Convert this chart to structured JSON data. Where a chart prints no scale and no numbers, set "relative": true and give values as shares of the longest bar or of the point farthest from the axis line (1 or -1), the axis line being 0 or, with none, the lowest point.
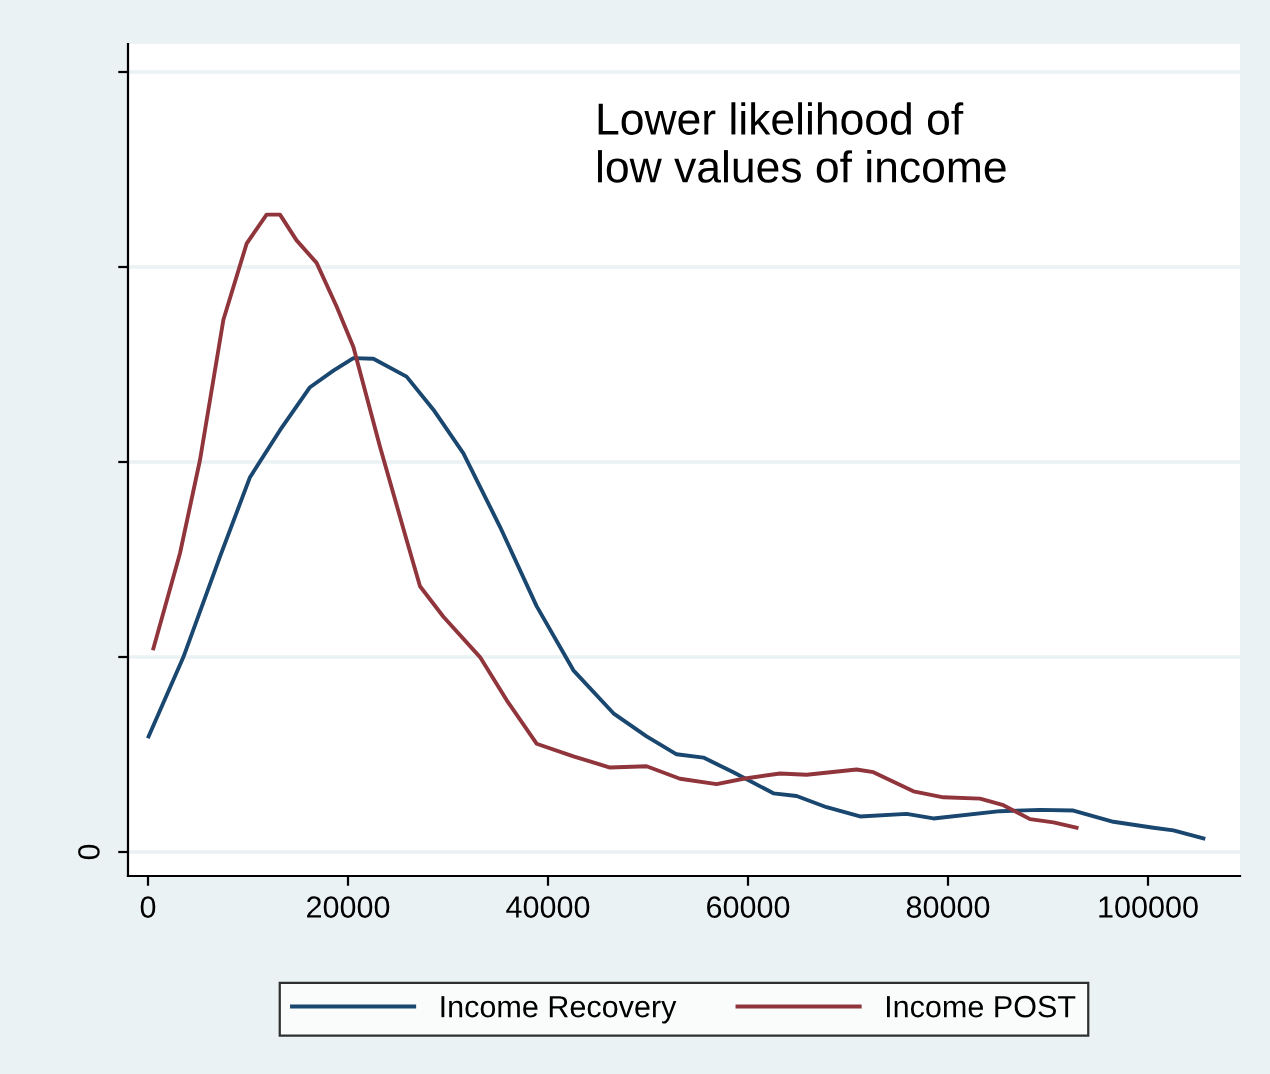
{
  "chart_data": {
    "type": "line",
    "relative": true,
    "legend": "bottom",
    "grid": "y",
    "marker": "none",
    "line_style": "solid",
    "xlim": [
      -2000,
      109200
    ],
    "xticks": [
      0,
      20000,
      40000,
      60000,
      80000,
      100000
    ],
    "annotations": [
      "Lower likelihood of\nlow values of income",
      "0"
    ],
    "series": [
      {
        "name": "Income Recovery",
        "color": "#1a476f",
        "x": [
          60,
          3540,
          7200,
          10200,
          13200,
          16200,
          18540,
          20540,
          22540,
          25860,
          28540,
          31540,
          35200,
          38860,
          42540,
          46540,
          49860,
          52860,
          55540,
          58540,
          62540,
          64860,
          67860,
          71200,
          75860,
          78540,
          85200,
          89200,
          92540,
          96540,
          100540,
          102540,
          105540
        ],
        "values": [
          0.211,
          0.331,
          0.483,
          0.603,
          0.674,
          0.739,
          0.764,
          0.783,
          0.782,
          0.755,
          0.705,
          0.639,
          0.528,
          0.408,
          0.311,
          0.246,
          0.211,
          0.184,
          0.179,
          0.157,
          0.125,
          0.121,
          0.104,
          0.09,
          0.094,
          0.087,
          0.098,
          0.1,
          0.099,
          0.082,
          0.073,
          0.069,
          0.057
        ]
      },
      {
        "name": "Income POST",
        "color": "#90353b",
        "x": [
          540,
          3200,
          5200,
          7540,
          9860,
          11860,
          13200,
          14860,
          16860,
          18860,
          20540,
          23200,
          25860,
          27200,
          29540,
          33200,
          35860,
          38860,
          42540,
          46200,
          49860,
          53200,
          56860,
          59540,
          63200,
          65860,
          70860,
          72540,
          76540,
          79540,
          83200,
          85540,
          88200,
          90540,
          92860
        ],
        "values": [
          0.344,
          0.488,
          0.629,
          0.841,
          0.956,
          1,
          1,
          0.961,
          0.927,
          0.861,
          0.8,
          0.649,
          0.508,
          0.438,
          0.392,
          0.331,
          0.266,
          0.2,
          0.181,
          0.164,
          0.166,
          0.147,
          0.139,
          0.147,
          0.155,
          0.153,
          0.161,
          0.157,
          0.128,
          0.119,
          0.117,
          0.107,
          0.086,
          0.081,
          0.073
        ]
      }
    ]
  }
}
